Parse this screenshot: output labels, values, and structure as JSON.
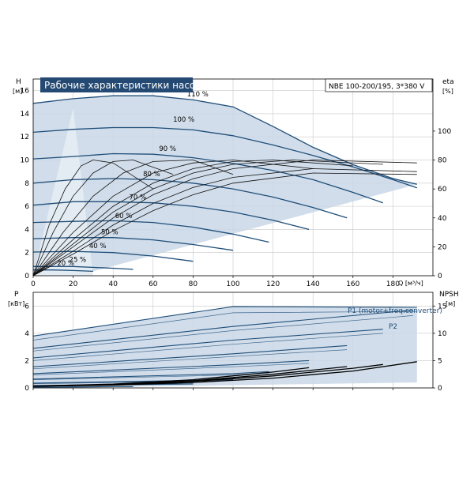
{
  "colors": {
    "curve": "#1f4e79",
    "region": "#c9d7e6",
    "region_light": "#e3ebf3",
    "axis": "#000000",
    "grid": "#c8c8c8",
    "title_bg": "#244a73",
    "title_text": "#ffffff",
    "label_blue": "#1f4e79"
  },
  "chart_data": [
    {
      "type": "line",
      "title": "Рабочие характеристики насоса",
      "subtitle": "NBE 100-200/195, 3*380 V",
      "xlabel": "Q [м³/ч]",
      "ylabel": "H",
      "ylabel_unit": "[м]",
      "y2label": "eta",
      "y2label_unit": "[%]",
      "xlim": [
        0,
        200
      ],
      "ylim": [
        0,
        17
      ],
      "y2lim": [
        0,
        136
      ],
      "x_ticks": [
        0,
        20,
        40,
        60,
        80,
        100,
        120,
        140,
        160,
        180
      ],
      "y_ticks": [
        0,
        2,
        4,
        6,
        8,
        10,
        12,
        14,
        16
      ],
      "y2_ticks": [
        0,
        20,
        40,
        60,
        80,
        100
      ],
      "grid": true,
      "speed_series": [
        {
          "label": "110 %",
          "label_at": [
            77,
            15.5
          ],
          "x": [
            0,
            20,
            40,
            60,
            80,
            100,
            120,
            140,
            160,
            180,
            192
          ],
          "y": [
            14.9,
            15.3,
            15.55,
            15.55,
            15.2,
            14.6,
            12.9,
            11.1,
            9.6,
            8.4,
            7.9
          ]
        },
        {
          "label": "100 %",
          "label_at": [
            70,
            13.3
          ],
          "x": [
            0,
            20,
            40,
            60,
            80,
            100,
            120,
            140,
            160,
            180,
            192
          ],
          "y": [
            12.4,
            12.65,
            12.8,
            12.8,
            12.6,
            12.1,
            11.3,
            10.4,
            9.4,
            8.3,
            7.6
          ]
        },
        {
          "label": "90 %",
          "label_at": [
            63,
            10.8
          ],
          "x": [
            0,
            20,
            40,
            60,
            80,
            100,
            120,
            140,
            160,
            175
          ],
          "y": [
            10.1,
            10.3,
            10.55,
            10.5,
            10.2,
            9.7,
            9.1,
            8.3,
            7.2,
            6.3
          ]
        },
        {
          "label": "80 %",
          "label_at": [
            55,
            8.6
          ],
          "x": [
            0,
            20,
            40,
            60,
            80,
            100,
            120,
            140,
            157
          ],
          "y": [
            8.0,
            8.3,
            8.4,
            8.3,
            8.0,
            7.5,
            6.8,
            5.9,
            5.0
          ]
        },
        {
          "label": "70 %",
          "label_at": [
            48,
            6.6
          ],
          "x": [
            0,
            20,
            40,
            60,
            80,
            100,
            120,
            138
          ],
          "y": [
            6.1,
            6.4,
            6.4,
            6.3,
            6.0,
            5.5,
            4.8,
            4.0
          ]
        },
        {
          "label": "60 %",
          "label_at": [
            41,
            5.0
          ],
          "x": [
            0,
            20,
            40,
            60,
            80,
            100,
            118
          ],
          "y": [
            4.6,
            4.7,
            4.75,
            4.6,
            4.2,
            3.6,
            2.9
          ]
        },
        {
          "label": "50 %",
          "label_at": [
            34,
            3.6
          ],
          "x": [
            0,
            20,
            40,
            60,
            80,
            100
          ],
          "y": [
            3.2,
            3.3,
            3.3,
            3.1,
            2.7,
            2.2
          ]
        },
        {
          "label": "40 %",
          "label_at": [
            28,
            2.4
          ],
          "x": [
            0,
            20,
            40,
            60,
            80
          ],
          "y": [
            2.05,
            2.1,
            2.0,
            1.7,
            1.25
          ]
        },
        {
          "label": "25 %",
          "label_at": [
            18,
            1.2
          ],
          "x": [
            0,
            20,
            40,
            50
          ],
          "y": [
            0.8,
            0.8,
            0.65,
            0.55
          ]
        },
        {
          "label": "20 %",
          "label_at": [
            12,
            0.9
          ],
          "x": [
            0,
            10,
            20,
            30
          ],
          "y": [
            0.5,
            0.5,
            0.45,
            0.38
          ]
        }
      ],
      "eta_series": [
        {
          "x": [
            0,
            8,
            16,
            24,
            30,
            40,
            60
          ],
          "y": [
            0,
            35,
            60,
            76,
            80,
            78,
            60
          ]
        },
        {
          "x": [
            0,
            10,
            20,
            30,
            40,
            50,
            70
          ],
          "y": [
            0,
            30,
            55,
            71,
            79,
            80,
            70
          ]
        },
        {
          "x": [
            0,
            15,
            30,
            45,
            60,
            80,
            100
          ],
          "y": [
            0,
            30,
            55,
            71,
            79,
            80,
            70
          ]
        },
        {
          "x": [
            0,
            20,
            40,
            60,
            80,
            100,
            140
          ],
          "y": [
            0,
            30,
            55,
            71,
            78,
            80,
            74
          ]
        },
        {
          "x": [
            0,
            20,
            40,
            60,
            80,
            100,
            120,
            160
          ],
          "y": [
            0,
            25,
            48,
            64,
            74,
            79,
            80,
            76
          ]
        },
        {
          "x": [
            0,
            20,
            40,
            60,
            80,
            100,
            130,
            175
          ],
          "y": [
            0,
            22,
            44,
            60,
            71,
            77,
            80,
            77
          ]
        },
        {
          "x": [
            0,
            20,
            40,
            60,
            80,
            100,
            140,
            192
          ],
          "y": [
            0,
            20,
            40,
            56,
            67,
            74,
            80,
            78
          ]
        },
        {
          "x": [
            0,
            20,
            40,
            60,
            80,
            100,
            140,
            192
          ],
          "y": [
            0,
            17,
            35,
            50,
            61,
            68,
            74,
            72
          ]
        },
        {
          "x": [
            0,
            20,
            40,
            60,
            80,
            100,
            140,
            192
          ],
          "y": [
            0,
            15,
            31,
            45,
            56,
            64,
            71,
            70
          ]
        }
      ]
    },
    {
      "type": "line",
      "ylabel": "P",
      "ylabel_unit": "[кВт]",
      "y2label": "NPSH",
      "y2label_unit": "[м]",
      "xlim": [
        0,
        200
      ],
      "ylim": [
        0,
        7
      ],
      "y2lim": [
        0,
        17.5
      ],
      "y_ticks": [
        0,
        2,
        4,
        6
      ],
      "y2_ticks": [
        0,
        5,
        10,
        15
      ],
      "grid": true,
      "labels": [
        "P1 (motor+freq.converter)",
        "P2"
      ],
      "p1_series": [
        {
          "x": [
            0,
            100,
            192
          ],
          "y": [
            3.8,
            5.95,
            5.9
          ]
        },
        {
          "x": [
            0,
            100,
            190
          ],
          "y": [
            2.9,
            4.5,
            5.7
          ]
        },
        {
          "x": [
            0,
            100,
            175
          ],
          "y": [
            2.2,
            3.5,
            4.3
          ]
        },
        {
          "x": [
            0,
            100,
            157
          ],
          "y": [
            1.55,
            2.5,
            3.1
          ]
        },
        {
          "x": [
            0,
            100,
            138
          ],
          "y": [
            1.05,
            1.7,
            2.0
          ]
        },
        {
          "x": [
            0,
            100,
            118
          ],
          "y": [
            0.65,
            1.05,
            1.2
          ]
        },
        {
          "x": [
            0,
            100
          ],
          "y": [
            0.35,
            0.6
          ]
        },
        {
          "x": [
            0,
            80
          ],
          "y": [
            0.18,
            0.3
          ]
        },
        {
          "x": [
            0,
            50
          ],
          "y": [
            0.05,
            0.1
          ]
        }
      ],
      "p2_series": [
        {
          "x": [
            0,
            100,
            192
          ],
          "y": [
            3.5,
            5.5,
            5.6
          ]
        },
        {
          "x": [
            0,
            100,
            190
          ],
          "y": [
            2.7,
            4.2,
            5.3
          ]
        },
        {
          "x": [
            0,
            100,
            175
          ],
          "y": [
            2.0,
            3.2,
            4.0
          ]
        },
        {
          "x": [
            0,
            100,
            157
          ],
          "y": [
            1.4,
            2.3,
            2.8
          ]
        },
        {
          "x": [
            0,
            100,
            138
          ],
          "y": [
            0.95,
            1.55,
            1.8
          ]
        },
        {
          "x": [
            0,
            100,
            118
          ],
          "y": [
            0.6,
            0.95,
            1.1
          ]
        },
        {
          "x": [
            0,
            100
          ],
          "y": [
            0.3,
            0.55
          ]
        },
        {
          "x": [
            0,
            80
          ],
          "y": [
            0.15,
            0.27
          ]
        },
        {
          "x": [
            0,
            50
          ],
          "y": [
            0.04,
            0.09
          ]
        }
      ],
      "npsh_series": [
        {
          "x": [
            0,
            40,
            80,
            120,
            160,
            192
          ],
          "y": [
            0.3,
            0.5,
            1.0,
            1.8,
            3.1,
            4.8
          ]
        },
        {
          "x": [
            0,
            40,
            80,
            120,
            160,
            175
          ],
          "y": [
            0.3,
            0.55,
            1.2,
            2.2,
            3.6,
            4.3
          ]
        },
        {
          "x": [
            0,
            40,
            80,
            120,
            157
          ],
          "y": [
            0.3,
            0.6,
            1.3,
            2.5,
            3.9
          ]
        },
        {
          "x": [
            0,
            40,
            80,
            120,
            138
          ],
          "y": [
            0.35,
            0.7,
            1.5,
            2.9,
            3.7
          ]
        }
      ]
    }
  ]
}
